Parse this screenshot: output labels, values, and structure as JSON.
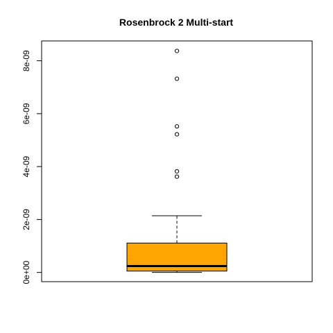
{
  "chart_data": {
    "type": "boxplot",
    "title": "Rosenbrock 2 Multi-start",
    "xlabel": "",
    "ylabel": "",
    "ylim": [
      -3.5e-10,
      8.75e-09
    ],
    "y_ticks": [
      0,
      2e-09,
      4e-09,
      6e-09,
      8e-09
    ],
    "y_tick_labels": [
      "0e+00",
      "2e-09",
      "4e-09",
      "6e-09",
      "8e-09"
    ],
    "grid": false,
    "legend": "none",
    "box": {
      "whisker_low": 0,
      "q1": 5e-11,
      "median": 2.4e-10,
      "q3": 1.11e-09,
      "whisker_high": 2.14e-09,
      "outliers": [
        3.62e-09,
        3.82e-09,
        5.22e-09,
        5.52e-09,
        7.32e-09,
        8.37e-09
      ]
    },
    "colors": {
      "box_fill": "#FFA500",
      "stroke": "#000000"
    }
  }
}
